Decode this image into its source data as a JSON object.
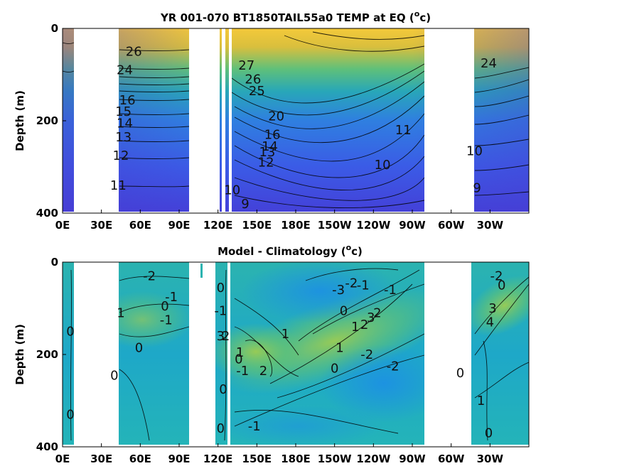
{
  "chart_data": [
    {
      "type": "heatmap",
      "title_main": "YR 001-070 BT1850TAIL55a0 TEMP at EQ (",
      "title_sup": "o",
      "title_tail": "c)",
      "ylabel": "Depth (m)",
      "xlabel": "",
      "x_ticks": [
        "0E",
        "30E",
        "60E",
        "90E",
        "120E",
        "150E",
        "180E",
        "150W",
        "120W",
        "90W",
        "60W",
        "30W"
      ],
      "y_ticks": [
        "0",
        "200",
        "400"
      ],
      "ylim": [
        0,
        400
      ],
      "colormap": "parula",
      "contour_labels": [
        {
          "text": "26",
          "lon": 55,
          "depth": 50
        },
        {
          "text": "24",
          "lon": 48,
          "depth": 90
        },
        {
          "text": "16",
          "lon": 50,
          "depth": 155
        },
        {
          "text": "15",
          "lon": 47,
          "depth": 180
        },
        {
          "text": "14",
          "lon": 48,
          "depth": 205
        },
        {
          "text": "13",
          "lon": 47,
          "depth": 235
        },
        {
          "text": "12",
          "lon": 45,
          "depth": 275
        },
        {
          "text": "11",
          "lon": 43,
          "depth": 340
        },
        {
          "text": "27",
          "lon": 142,
          "depth": 80
        },
        {
          "text": "26",
          "lon": 147,
          "depth": 110
        },
        {
          "text": "25",
          "lon": 150,
          "depth": 135
        },
        {
          "text": "20",
          "lon": 165,
          "depth": 190
        },
        {
          "text": "16",
          "lon": 162,
          "depth": 230
        },
        {
          "text": "14",
          "lon": 160,
          "depth": 255
        },
        {
          "text": "13",
          "lon": 158,
          "depth": 268
        },
        {
          "text": "12",
          "lon": 157,
          "depth": 290
        },
        {
          "text": "10",
          "lon": 131,
          "depth": 350
        },
        {
          "text": "9",
          "lon": 141,
          "depth": 380
        },
        {
          "text": "11",
          "lon": 263,
          "depth": 220
        },
        {
          "text": "10",
          "lon": 247,
          "depth": 295
        },
        {
          "text": "24",
          "lon": 329,
          "depth": 75
        },
        {
          "text": "10",
          "lon": 318,
          "depth": 265
        },
        {
          "text": "9",
          "lon": 320,
          "depth": 345
        }
      ]
    },
    {
      "type": "heatmap",
      "title_main": "Model - Climatology (",
      "title_sup": "o",
      "title_tail": "c)",
      "ylabel": "Depth (m)",
      "xlabel": "",
      "x_ticks": [
        "0E",
        "30E",
        "60E",
        "90E",
        "120E",
        "150E",
        "180E",
        "150W",
        "120W",
        "90W",
        "60W",
        "30W"
      ],
      "y_ticks": [
        "0",
        "200",
        "400"
      ],
      "ylim": [
        0,
        400
      ],
      "colormap": "parula",
      "contour_labels": [
        {
          "text": "-2",
          "lon": 67,
          "depth": 30
        },
        {
          "text": "0",
          "lon": 79,
          "depth": 95
        },
        {
          "text": "-1",
          "lon": 84,
          "depth": 75
        },
        {
          "text": "-1",
          "lon": 80,
          "depth": 125
        },
        {
          "text": "1",
          "lon": 45,
          "depth": 110
        },
        {
          "text": "0",
          "lon": 59,
          "depth": 185
        },
        {
          "text": "0",
          "lon": 6,
          "depth": 150
        },
        {
          "text": "0",
          "lon": 40,
          "depth": 245
        },
        {
          "text": "0",
          "lon": 6,
          "depth": 330
        },
        {
          "text": "0",
          "lon": 122,
          "depth": 55
        },
        {
          "text": "-1",
          "lon": 122,
          "depth": 105
        },
        {
          "text": "3",
          "lon": 122,
          "depth": 160
        },
        {
          "text": "2",
          "lon": 126,
          "depth": 160
        },
        {
          "text": "0",
          "lon": 124,
          "depth": 275
        },
        {
          "text": "0",
          "lon": 122,
          "depth": 360
        },
        {
          "text": "1",
          "lon": 137,
          "depth": 195
        },
        {
          "text": "0",
          "lon": 136,
          "depth": 210
        },
        {
          "text": "-1",
          "lon": 139,
          "depth": 235
        },
        {
          "text": "2",
          "lon": 155,
          "depth": 235
        },
        {
          "text": "1",
          "lon": 172,
          "depth": 155
        },
        {
          "text": "-3",
          "lon": 213,
          "depth": 60
        },
        {
          "text": "-2",
          "lon": 223,
          "depth": 45
        },
        {
          "text": "-1",
          "lon": 232,
          "depth": 50
        },
        {
          "text": "0",
          "lon": 217,
          "depth": 105
        },
        {
          "text": "1",
          "lon": 226,
          "depth": 140
        },
        {
          "text": "2",
          "lon": 233,
          "depth": 135
        },
        {
          "text": "3",
          "lon": 238,
          "depth": 120
        },
        {
          "text": "2",
          "lon": 243,
          "depth": 110
        },
        {
          "text": "-1",
          "lon": 253,
          "depth": 60
        },
        {
          "text": "-2",
          "lon": 235,
          "depth": 200
        },
        {
          "text": "-2",
          "lon": 255,
          "depth": 225
        },
        {
          "text": "-1",
          "lon": 148,
          "depth": 355
        },
        {
          "text": "1",
          "lon": 214,
          "depth": 185
        },
        {
          "text": "0",
          "lon": 210,
          "depth": 230
        },
        {
          "text": "-2",
          "lon": 335,
          "depth": 30
        },
        {
          "text": "0",
          "lon": 339,
          "depth": 50
        },
        {
          "text": "3",
          "lon": 332,
          "depth": 100
        },
        {
          "text": "4",
          "lon": 330,
          "depth": 130
        },
        {
          "text": "0",
          "lon": 307,
          "depth": 240
        },
        {
          "text": "1",
          "lon": 323,
          "depth": 300
        },
        {
          "text": "0",
          "lon": 329,
          "depth": 370
        }
      ]
    }
  ]
}
